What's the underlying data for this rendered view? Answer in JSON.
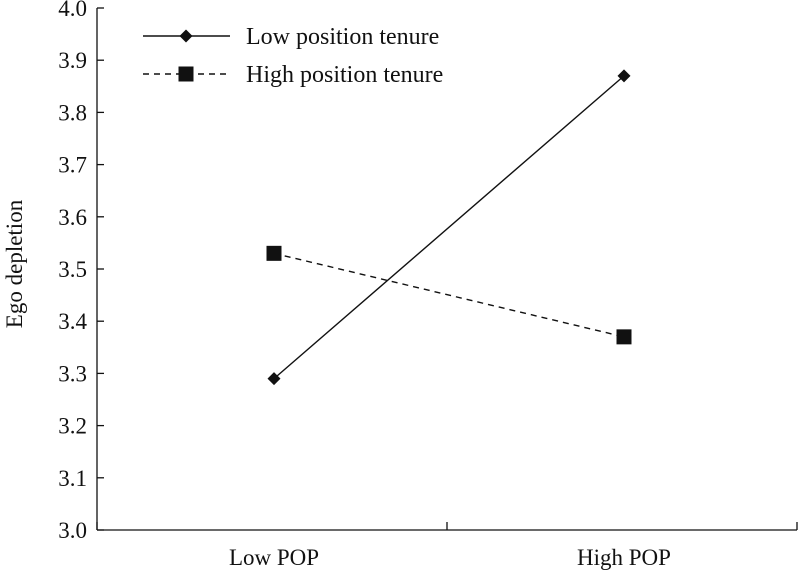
{
  "chart_data": {
    "type": "line",
    "title": "",
    "xlabel": "",
    "ylabel": "Ego depletion",
    "ylim": [
      3.0,
      4.0
    ],
    "yticks": [
      "3.0",
      "3.1",
      "3.2",
      "3.3",
      "3.4",
      "3.5",
      "3.6",
      "3.7",
      "3.8",
      "3.9",
      "4.0"
    ],
    "categories": [
      "Low POP",
      "High POP"
    ],
    "grid": false,
    "legend_position": "top-left",
    "series": [
      {
        "name": "Low position tenure",
        "values": [
          3.29,
          3.87
        ],
        "line": "solid",
        "marker": "diamond",
        "color": "#111111"
      },
      {
        "name": "High position tenure",
        "values": [
          3.53,
          3.37
        ],
        "line": "dashed",
        "marker": "square",
        "color": "#111111"
      }
    ]
  }
}
